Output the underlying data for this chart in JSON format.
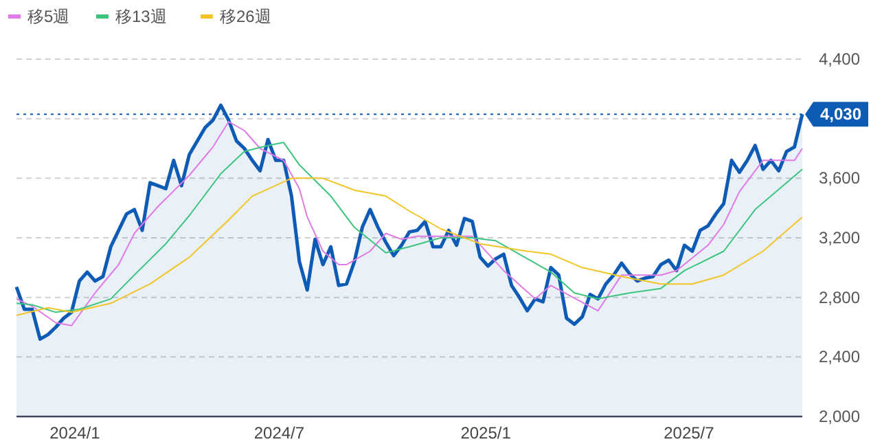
{
  "chart_data": {
    "type": "line",
    "xlim": [
      "2023-11-10",
      "2025-10-10"
    ],
    "xticks": [
      {
        "value": "2024-01-01",
        "label": "2024/1"
      },
      {
        "value": "2024-07-01",
        "label": "2024/7"
      },
      {
        "value": "2025-01-01",
        "label": "2025/1"
      },
      {
        "value": "2025-07-01",
        "label": "2025/7"
      }
    ],
    "ylim": [
      2000,
      4400
    ],
    "yticks": [
      {
        "value": 2000,
        "label": "2,000"
      },
      {
        "value": 2400,
        "label": "2,400"
      },
      {
        "value": 2800,
        "label": "2,800"
      },
      {
        "value": 3200,
        "label": "3,200"
      },
      {
        "value": 3600,
        "label": "3,600"
      },
      {
        "value": 4000,
        "label": null
      },
      {
        "value": 4400,
        "label": "4,400"
      }
    ],
    "grid": "y",
    "legend": "top left",
    "ref_lines": [
      {
        "axis": "y",
        "value": 4030,
        "label": "4,030",
        "color": "#0d5bb5",
        "line_style": "dotted"
      }
    ],
    "series": [
      {
        "type": "area",
        "color": "#0d5bb5",
        "x": [
          "2023-11-10",
          "2023-11-17",
          "2023-11-24",
          "2023-12-01",
          "2023-12-08",
          "2023-12-15",
          "2023-12-22",
          "2023-12-29",
          "2024-01-05",
          "2024-01-12",
          "2024-01-19",
          "2024-01-26",
          "2024-02-02",
          "2024-02-09",
          "2024-02-16",
          "2024-02-23",
          "2024-03-01",
          "2024-03-08",
          "2024-03-15",
          "2024-03-22",
          "2024-03-29",
          "2024-04-05",
          "2024-04-12",
          "2024-04-19",
          "2024-04-26",
          "2024-05-03",
          "2024-05-10",
          "2024-05-17",
          "2024-05-24",
          "2024-05-31",
          "2024-06-07",
          "2024-06-14",
          "2024-06-21",
          "2024-06-28",
          "2024-07-05",
          "2024-07-12",
          "2024-07-19",
          "2024-07-26",
          "2024-08-02",
          "2024-08-09",
          "2024-08-16",
          "2024-08-23",
          "2024-08-30",
          "2024-09-06",
          "2024-09-13",
          "2024-09-20",
          "2024-09-27",
          "2024-10-04",
          "2024-10-11",
          "2024-10-18",
          "2024-10-25",
          "2024-11-01",
          "2024-11-08",
          "2024-11-15",
          "2024-11-22",
          "2024-11-29",
          "2024-12-06",
          "2024-12-13",
          "2024-12-20",
          "2024-12-27",
          "2025-01-03",
          "2025-01-10",
          "2025-01-17",
          "2025-01-24",
          "2025-01-31",
          "2025-02-07",
          "2025-02-14",
          "2025-02-21",
          "2025-02-28",
          "2025-03-07",
          "2025-03-14",
          "2025-03-21",
          "2025-03-28",
          "2025-04-04",
          "2025-04-11",
          "2025-04-18",
          "2025-04-25",
          "2025-05-02",
          "2025-05-09",
          "2025-05-16",
          "2025-05-23",
          "2025-05-30",
          "2025-06-06",
          "2025-06-13",
          "2025-06-20",
          "2025-06-27",
          "2025-07-04",
          "2025-07-11",
          "2025-07-18",
          "2025-07-25",
          "2025-08-01",
          "2025-08-08",
          "2025-08-15",
          "2025-08-22",
          "2025-08-29",
          "2025-09-05",
          "2025-09-12",
          "2025-09-19",
          "2025-09-26",
          "2025-10-03",
          "2025-10-10"
        ],
        "values": [
          2870,
          2720,
          2720,
          2520,
          2550,
          2600,
          2660,
          2700,
          2910,
          2970,
          2910,
          2940,
          3140,
          3250,
          3360,
          3390,
          3250,
          3570,
          3550,
          3530,
          3720,
          3550,
          3760,
          3850,
          3940,
          3990,
          4090,
          3990,
          3850,
          3800,
          3720,
          3650,
          3860,
          3720,
          3720,
          3480,
          3040,
          2850,
          3190,
          3020,
          3140,
          2880,
          2890,
          3040,
          3270,
          3390,
          3270,
          3170,
          3080,
          3150,
          3240,
          3250,
          3310,
          3140,
          3140,
          3250,
          3150,
          3330,
          3310,
          3070,
          3010,
          3060,
          3090,
          2880,
          2800,
          2710,
          2790,
          2770,
          3000,
          2950,
          2660,
          2620,
          2670,
          2820,
          2790,
          2890,
          2950,
          3030,
          2960,
          2910,
          2930,
          2940,
          3020,
          3050,
          2980,
          3150,
          3110,
          3250,
          3280,
          3360,
          3430,
          3720,
          3640,
          3720,
          3820,
          3660,
          3720,
          3650,
          3780,
          3810,
          4030
        ]
      },
      {
        "name": "移5週",
        "color": "#e07ae6",
        "x": [
          "2023-11-10",
          "2023-11-24",
          "2023-12-15",
          "2023-12-29",
          "2024-01-19",
          "2024-02-09",
          "2024-02-23",
          "2024-03-15",
          "2024-04-12",
          "2024-05-03",
          "2024-05-17",
          "2024-05-31",
          "2024-06-14",
          "2024-07-05",
          "2024-07-19",
          "2024-07-26",
          "2024-08-09",
          "2024-08-23",
          "2024-08-30",
          "2024-09-20",
          "2024-10-04",
          "2024-10-18",
          "2024-11-01",
          "2024-11-22",
          "2024-12-20",
          "2025-01-17",
          "2025-02-14",
          "2025-02-28",
          "2025-04-11",
          "2025-05-02",
          "2025-06-06",
          "2025-06-20",
          "2025-07-18",
          "2025-08-01",
          "2025-08-15",
          "2025-09-05",
          "2025-09-19",
          "2025-10-03",
          "2025-10-10"
        ],
        "values": [
          2790,
          2740,
          2630,
          2610,
          2830,
          3020,
          3230,
          3410,
          3620,
          3810,
          3980,
          3920,
          3800,
          3720,
          3530,
          3340,
          3110,
          3020,
          3020,
          3110,
          3230,
          3190,
          3210,
          3210,
          3210,
          2980,
          2790,
          2880,
          2710,
          2950,
          2950,
          2980,
          3150,
          3290,
          3510,
          3720,
          3720,
          3720,
          3800
        ]
      },
      {
        "name": "移13週",
        "color": "#3dc47e",
        "x": [
          "2023-11-10",
          "2023-11-24",
          "2023-12-15",
          "2024-01-05",
          "2024-02-02",
          "2024-02-23",
          "2024-03-22",
          "2024-04-12",
          "2024-05-10",
          "2024-05-31",
          "2024-06-21",
          "2024-07-05",
          "2024-07-19",
          "2024-08-16",
          "2024-09-06",
          "2024-10-04",
          "2024-10-25",
          "2024-11-22",
          "2024-12-20",
          "2025-01-10",
          "2025-02-07",
          "2025-02-28",
          "2025-03-21",
          "2025-04-11",
          "2025-05-09",
          "2025-06-06",
          "2025-06-27",
          "2025-08-01",
          "2025-08-29",
          "2025-10-10"
        ],
        "values": [
          2760,
          2750,
          2700,
          2720,
          2790,
          2950,
          3160,
          3350,
          3630,
          3780,
          3820,
          3840,
          3690,
          3480,
          3270,
          3100,
          3140,
          3200,
          3200,
          3180,
          3060,
          2970,
          2830,
          2790,
          2830,
          2860,
          2980,
          3110,
          3390,
          3660
        ]
      },
      {
        "name": "移26週",
        "color": "#f2c527",
        "x": [
          "2023-11-10",
          "2023-12-08",
          "2023-12-29",
          "2024-02-02",
          "2024-03-08",
          "2024-04-12",
          "2024-05-17",
          "2024-06-07",
          "2024-07-12",
          "2024-08-09",
          "2024-09-06",
          "2024-10-04",
          "2024-10-25",
          "2024-11-22",
          "2024-12-27",
          "2025-02-07",
          "2025-02-28",
          "2025-03-28",
          "2025-05-02",
          "2025-06-06",
          "2025-07-04",
          "2025-08-01",
          "2025-09-05",
          "2025-10-10"
        ],
        "values": [
          2680,
          2730,
          2700,
          2760,
          2890,
          3070,
          3320,
          3480,
          3600,
          3600,
          3520,
          3480,
          3380,
          3260,
          3160,
          3110,
          3090,
          3000,
          2940,
          2890,
          2890,
          2950,
          3110,
          3340
        ]
      }
    ]
  }
}
